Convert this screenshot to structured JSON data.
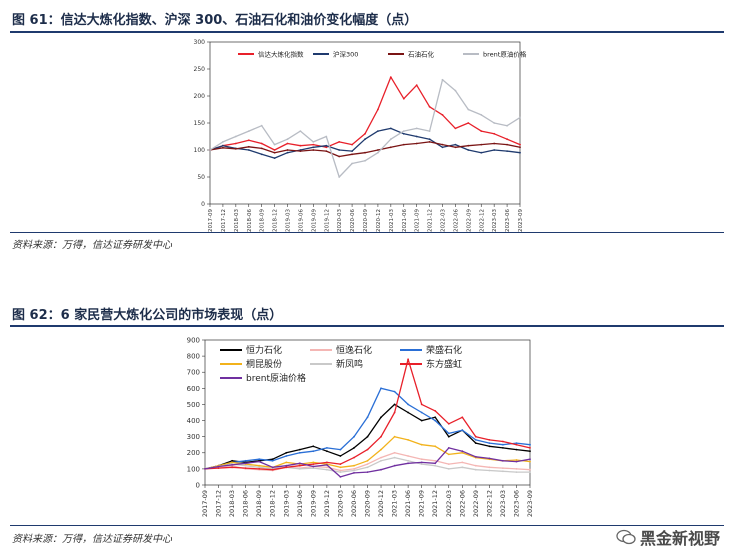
{
  "figure1": {
    "title": "图 61：信达大炼化指数、沪深 300、石油石化和油价变化幅度（点）",
    "source": "资料来源：万得，信达证券研发中心"
  },
  "figure2": {
    "title": "图 62：6 家民营大炼化公司的市场表现（点）",
    "source": "资料来源：万得，信达证券研发中心"
  },
  "watermark": "黑金新视野",
  "chart_data": [
    {
      "type": "line",
      "title": "",
      "xlabel": "",
      "ylabel": "",
      "ylim": [
        0,
        300
      ],
      "yticks": [
        0,
        50,
        100,
        150,
        200,
        250,
        300
      ],
      "x_ticks": [
        "2017-09",
        "2017-12",
        "2018-03",
        "2018-06",
        "2018-09",
        "2018-12",
        "2019-03",
        "2019-06",
        "2019-09",
        "2019-12",
        "2020-03",
        "2020-06",
        "2020-09",
        "2020-12",
        "2021-03",
        "2021-06",
        "2021-09",
        "2021-12",
        "2022-03",
        "2022-06",
        "2022-09",
        "2022-12",
        "2023-03",
        "2023-06",
        "2023-09"
      ],
      "legend_position": "top",
      "series": [
        {
          "name": "信达大炼化指数",
          "color": "#e8202a",
          "values": [
            100,
            108,
            112,
            118,
            112,
            100,
            112,
            108,
            110,
            105,
            115,
            110,
            130,
            175,
            235,
            195,
            220,
            180,
            165,
            140,
            150,
            135,
            130,
            120,
            110
          ]
        },
        {
          "name": "沪深300",
          "color": "#1f3a6e",
          "values": [
            100,
            108,
            103,
            100,
            92,
            85,
            95,
            100,
            105,
            108,
            100,
            98,
            120,
            135,
            140,
            130,
            125,
            120,
            105,
            110,
            100,
            95,
            100,
            98,
            95
          ]
        },
        {
          "name": "石油石化",
          "color": "#7a1414",
          "values": [
            100,
            104,
            102,
            106,
            103,
            95,
            100,
            98,
            100,
            98,
            88,
            92,
            95,
            100,
            105,
            110,
            112,
            115,
            110,
            105,
            108,
            110,
            112,
            110,
            105
          ]
        },
        {
          "name": "brent原油价格",
          "color": "#b8bcc4",
          "values": [
            100,
            115,
            125,
            135,
            145,
            110,
            120,
            135,
            115,
            125,
            50,
            75,
            80,
            95,
            120,
            135,
            140,
            135,
            230,
            210,
            175,
            165,
            150,
            145,
            160
          ]
        }
      ]
    },
    {
      "type": "line",
      "title": "",
      "xlabel": "",
      "ylabel": "",
      "ylim": [
        0,
        900
      ],
      "yticks": [
        0,
        100,
        200,
        300,
        400,
        500,
        600,
        700,
        800,
        900
      ],
      "x_ticks": [
        "2017-09",
        "2017-12",
        "2018-03",
        "2018-06",
        "2018-09",
        "2018-12",
        "2019-03",
        "2019-06",
        "2019-09",
        "2019-12",
        "2020-03",
        "2020-06",
        "2020-09",
        "2020-12",
        "2021-03",
        "2021-06",
        "2021-09",
        "2021-12",
        "2022-03",
        "2022-06",
        "2022-09",
        "2022-12",
        "2023-03",
        "2023-06",
        "2023-09"
      ],
      "legend_position": "top",
      "series": [
        {
          "name": "恒力石化",
          "color": "#000000",
          "values": [
            100,
            120,
            150,
            140,
            150,
            160,
            200,
            220,
            240,
            210,
            180,
            230,
            300,
            420,
            500,
            450,
            400,
            420,
            300,
            340,
            260,
            240,
            230,
            220,
            210
          ]
        },
        {
          "name": "恒逸石化",
          "color": "#f4b6b4",
          "values": [
            100,
            110,
            120,
            100,
            95,
            90,
            110,
            105,
            115,
            110,
            90,
            100,
            130,
            170,
            200,
            180,
            160,
            150,
            130,
            140,
            120,
            110,
            105,
            100,
            95
          ]
        },
        {
          "name": "荣盛石化",
          "color": "#2a6fd6",
          "values": [
            100,
            115,
            140,
            150,
            160,
            150,
            180,
            200,
            210,
            230,
            220,
            300,
            420,
            600,
            580,
            500,
            450,
            400,
            320,
            340,
            280,
            260,
            250,
            260,
            250
          ]
        },
        {
          "name": "桐昆股份",
          "color": "#f2b21b",
          "values": [
            100,
            120,
            140,
            130,
            120,
            110,
            140,
            130,
            140,
            130,
            110,
            120,
            150,
            220,
            300,
            280,
            250,
            240,
            190,
            200,
            170,
            160,
            150,
            155,
            145
          ]
        },
        {
          "name": "新凤鸣",
          "color": "#c9c9c9",
          "values": [
            100,
            115,
            130,
            120,
            110,
            100,
            110,
            100,
            105,
            95,
            80,
            90,
            110,
            150,
            170,
            150,
            130,
            120,
            100,
            110,
            95,
            90,
            85,
            80,
            80
          ]
        },
        {
          "name": "东方盛虹",
          "color": "#e8202a",
          "values": [
            100,
            105,
            110,
            105,
            100,
            95,
            110,
            120,
            130,
            140,
            130,
            170,
            220,
            300,
            450,
            780,
            500,
            460,
            380,
            420,
            300,
            280,
            270,
            250,
            230
          ]
        },
        {
          "name": "brent原油价格",
          "color": "#7030a0",
          "values": [
            100,
            115,
            125,
            135,
            145,
            110,
            120,
            135,
            115,
            125,
            50,
            75,
            80,
            95,
            120,
            135,
            140,
            135,
            230,
            210,
            175,
            165,
            150,
            145,
            160
          ]
        }
      ]
    }
  ]
}
